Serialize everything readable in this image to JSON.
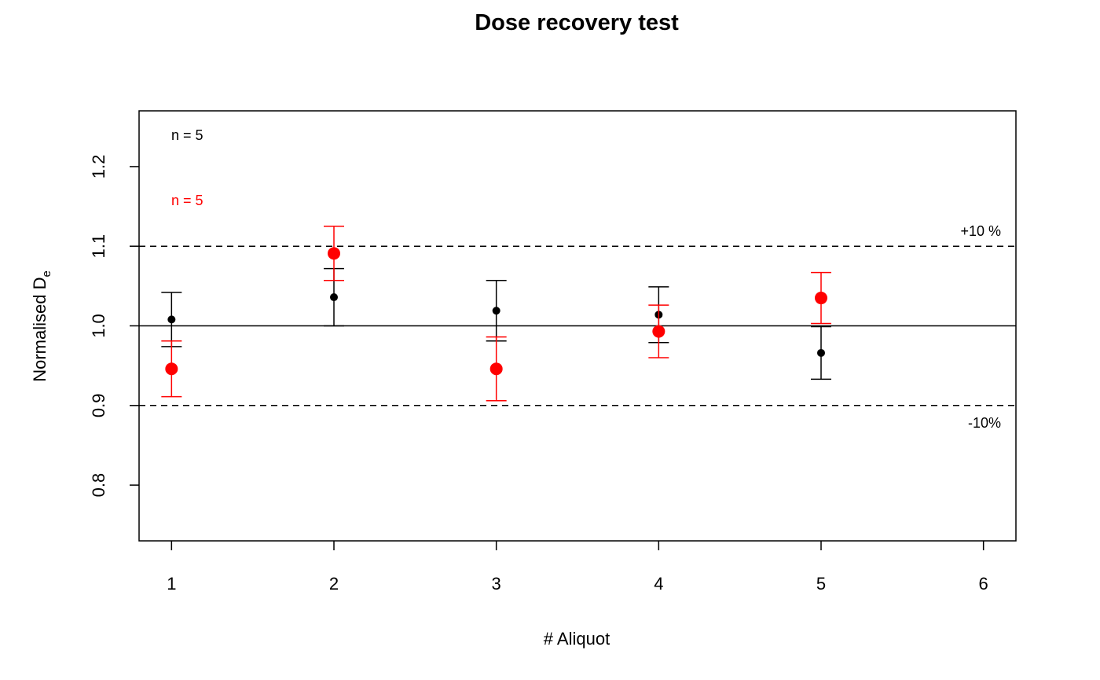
{
  "chart_data": {
    "type": "scatter",
    "title": "Dose recovery test",
    "xlabel": "# Aliquot",
    "ylabel": {
      "main": "Normalised D",
      "sub": "e"
    },
    "xlim": [
      0.8,
      6.2
    ],
    "ylim": [
      0.73,
      1.27
    ],
    "x_ticks": [
      1,
      2,
      3,
      4,
      5,
      6
    ],
    "y_ticks": [
      0.8,
      0.9,
      1.0,
      1.1,
      1.2
    ],
    "y_tick_labels": [
      "0.8",
      "0.9",
      "1.0",
      "1.1",
      "1.2"
    ],
    "reference_lines": [
      {
        "y": 1.0,
        "style": "solid"
      },
      {
        "y": 1.1,
        "style": "dashed",
        "label": "+10 %"
      },
      {
        "y": 0.9,
        "style": "dashed",
        "label": "-10%"
      }
    ],
    "series": [
      {
        "color": "#000000",
        "marker": "small",
        "x": [
          1,
          2,
          3,
          4,
          5
        ],
        "y": [
          1.008,
          1.036,
          1.019,
          1.014,
          0.966
        ],
        "err": [
          0.034,
          0.036,
          0.038,
          0.035,
          0.033
        ],
        "n_label": "n = 5"
      },
      {
        "color": "#ff0000",
        "marker": "large",
        "x": [
          1,
          2,
          3,
          4,
          5
        ],
        "y": [
          0.946,
          1.091,
          0.946,
          0.993,
          1.035
        ],
        "err": [
          0.035,
          0.034,
          0.04,
          0.033,
          0.032
        ],
        "n_label": "n = 5"
      }
    ],
    "grid": false,
    "legend": "none"
  }
}
